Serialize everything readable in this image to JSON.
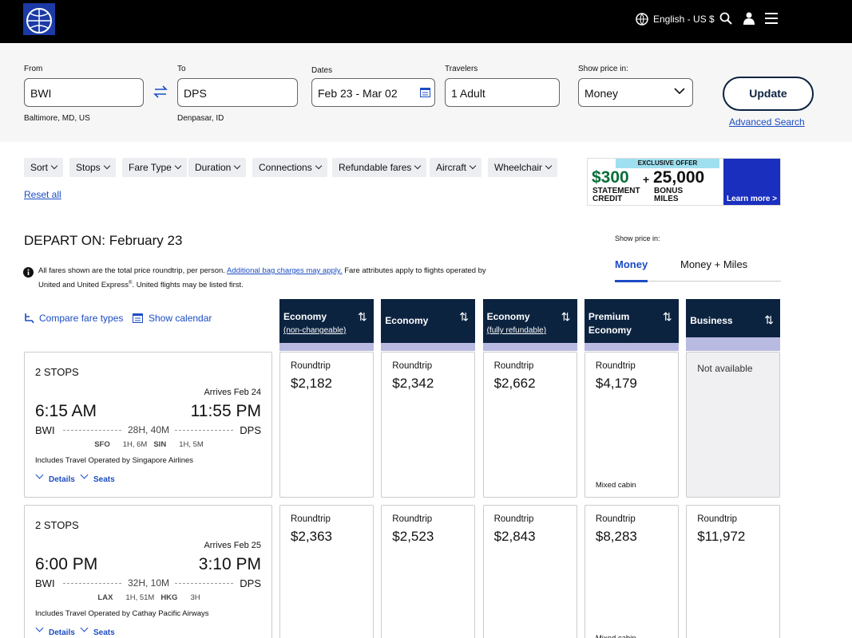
{
  "header": {
    "language": "English - US $"
  },
  "search": {
    "from": {
      "label": "From",
      "value": "BWI",
      "detail": "Baltimore, MD, US"
    },
    "to": {
      "label": "To",
      "value": "DPS",
      "detail": "Denpasar, ID"
    },
    "dates": {
      "label": "Dates",
      "value": "Feb 23 - Mar 02"
    },
    "travelers": {
      "label": "Travelers",
      "value": "1 Adult"
    },
    "price_mode": {
      "label": "Show price in:",
      "value": "Money"
    },
    "update": "Update",
    "advanced": "Advanced Search"
  },
  "filters": {
    "chips": [
      "Sort",
      "Stops",
      "Fare Type",
      "Duration",
      "Connections",
      "Refundable fares",
      "Aircraft",
      "Wheelchair"
    ],
    "reset": "Reset all"
  },
  "ad": {
    "badge": "EXCLUSIVE OFFER",
    "amount": "$300",
    "amount_label": "STATEMENT CREDIT",
    "plus": "+",
    "miles": "25,000",
    "miles_label": "BONUS MILES",
    "cta": "Learn more >"
  },
  "results": {
    "heading": "DEPART ON: February 23",
    "price_toggle": {
      "label": "Show price in:",
      "tabs": [
        "Money",
        "Money + Miles"
      ]
    },
    "notice": {
      "text1": "All fares shown are the total price roundtrip, per person. ",
      "link": "Additional bag charges may apply.",
      "text2": " Fare attributes apply to flights operated by United and United Express",
      "sup": "®",
      "text3": ". United flights may be listed first."
    },
    "tools": [
      "Compare fare types",
      "Show calendar"
    ],
    "columns": [
      {
        "name": "Economy",
        "sub": "(non-changeable)"
      },
      {
        "name": "Economy"
      },
      {
        "name": "Economy",
        "sub": "(fully refundable)"
      },
      {
        "name": "Premium Economy"
      },
      {
        "name": "Business"
      }
    ],
    "flights": [
      {
        "stops": "2 STOPS",
        "arrives": "Arrives Feb 24",
        "depart_time": "6:15 AM",
        "arrive_time": "11:55 PM",
        "origin": "BWI",
        "destination": "DPS",
        "duration": "28H, 40M",
        "connections": [
          {
            "code": "SFO",
            "time": "1H, 6M"
          },
          {
            "code": "SIN",
            "time": "1H, 5M"
          }
        ],
        "operated": "Includes Travel Operated by Singapore Airlines",
        "actions": [
          "Details",
          "Seats"
        ],
        "fares": [
          {
            "label": "Roundtrip",
            "price": "$2,182"
          },
          {
            "label": "Roundtrip",
            "price": "$2,342"
          },
          {
            "label": "Roundtrip",
            "price": "$2,662"
          },
          {
            "label": "Roundtrip",
            "price": "$4,179",
            "note": "Mixed cabin"
          },
          {
            "status": "Not available"
          }
        ]
      },
      {
        "stops": "2 STOPS",
        "arrives": "Arrives Feb 25",
        "depart_time": "6:00 PM",
        "arrive_time": "3:10 PM",
        "origin": "BWI",
        "destination": "DPS",
        "duration": "32H, 10M",
        "connections": [
          {
            "code": "LAX",
            "time": "1H, 51M"
          },
          {
            "code": "HKG",
            "time": "3H"
          }
        ],
        "operated": "Includes Travel Operated by Cathay Pacific Airways",
        "actions": [
          "Details",
          "Seats"
        ],
        "fares": [
          {
            "label": "Roundtrip",
            "price": "$2,363"
          },
          {
            "label": "Roundtrip",
            "price": "$2,523"
          },
          {
            "label": "Roundtrip",
            "price": "$2,843"
          },
          {
            "label": "Roundtrip",
            "price": "$8,283",
            "note": "Mixed cabin"
          },
          {
            "label": "Roundtrip",
            "price": "$11,972"
          }
        ]
      }
    ]
  }
}
